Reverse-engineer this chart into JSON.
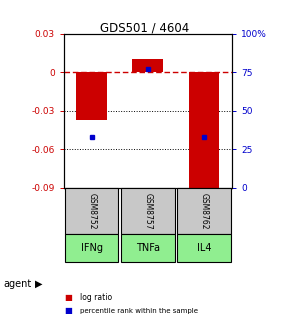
{
  "title": "GDS501 / 4604",
  "bar_positions": [
    1,
    2,
    3
  ],
  "bar_values": [
    -0.037,
    0.01,
    -0.091
  ],
  "percentile_values": [
    33,
    77,
    33
  ],
  "gsm_labels": [
    "GSM8752",
    "GSM8757",
    "GSM8762"
  ],
  "agent_labels": [
    "IFNg",
    "TNFa",
    "IL4"
  ],
  "ylim_left": [
    -0.09,
    0.03
  ],
  "ylim_right": [
    0,
    100
  ],
  "yticks_left": [
    0.03,
    0.0,
    -0.03,
    -0.06,
    -0.09
  ],
  "yticks_right": [
    100,
    75,
    50,
    25,
    0
  ],
  "ytick_labels_left": [
    "0.03",
    "0",
    "-0.03",
    "-0.06",
    "-0.09"
  ],
  "ytick_labels_right": [
    "100%",
    "75",
    "50",
    "25",
    "0"
  ],
  "bar_color": "#cc0000",
  "percentile_color": "#0000cc",
  "zero_line_color": "#cc0000",
  "grid_color": "#000000",
  "gsm_box_color": "#c8c8c8",
  "agent_box_color": "#90ee90",
  "bar_width": 0.55,
  "xlim": [
    0.5,
    3.5
  ],
  "legend_log_ratio": "log ratio",
  "legend_percentile": "percentile rank within the sample",
  "agent_label": "agent"
}
